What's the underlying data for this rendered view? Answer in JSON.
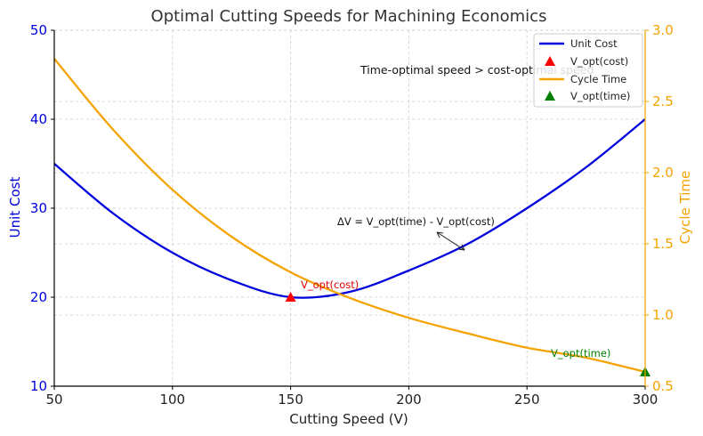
{
  "chart_data": {
    "type": "line",
    "title": "Optimal Cutting Speeds for Machining Economics",
    "xlabel": "Cutting Speed (V)",
    "ylabel_left": "Unit Cost",
    "ylabel_right": "Cycle Time",
    "xlim": [
      50,
      300
    ],
    "ylim_left": [
      10,
      50
    ],
    "ylim_right": [
      0.5,
      3.0
    ],
    "x_ticks": [
      "50",
      "100",
      "150",
      "200",
      "250",
      "300"
    ],
    "y_left_ticks": [
      "10",
      "20",
      "30",
      "40",
      "50"
    ],
    "y_right_ticks": [
      "0.5",
      "1.0",
      "1.5",
      "2.0",
      "2.5",
      "3.0"
    ],
    "grid": true,
    "legend_position": "top-right",
    "series": [
      {
        "name": "Unit Cost",
        "axis": "left",
        "color": "#0000dd",
        "x": [
          50,
          75,
          100,
          125,
          150,
          175,
          200,
          225,
          250,
          275,
          300
        ],
        "y": [
          35.0,
          29.4,
          25.0,
          21.9,
          20.0,
          20.6,
          23.0,
          26.0,
          30.0,
          34.6,
          40.0
        ]
      },
      {
        "name": "Cycle Time",
        "axis": "right",
        "color": "#f5a300",
        "x": [
          50,
          75,
          100,
          125,
          150,
          175,
          200,
          225,
          250,
          275,
          300
        ],
        "y": [
          2.8,
          2.3,
          1.88,
          1.55,
          1.3,
          1.12,
          0.98,
          0.87,
          0.77,
          0.7,
          0.6
        ]
      }
    ],
    "markers": [
      {
        "name": "V_opt(cost)",
        "x": 150,
        "y": 20,
        "axis": "left",
        "color": "#ff0000",
        "label": "V_opt(cost)"
      },
      {
        "name": "V_opt(time)",
        "x": 300,
        "y": 0.6,
        "axis": "right",
        "color": "#008000",
        "label": "V_opt(time)"
      }
    ],
    "annotations": [
      {
        "text": "Time-optimal speed > cost-optimal speed"
      },
      {
        "text": "ΔV = V_opt(time) - V_opt(cost)"
      }
    ]
  }
}
